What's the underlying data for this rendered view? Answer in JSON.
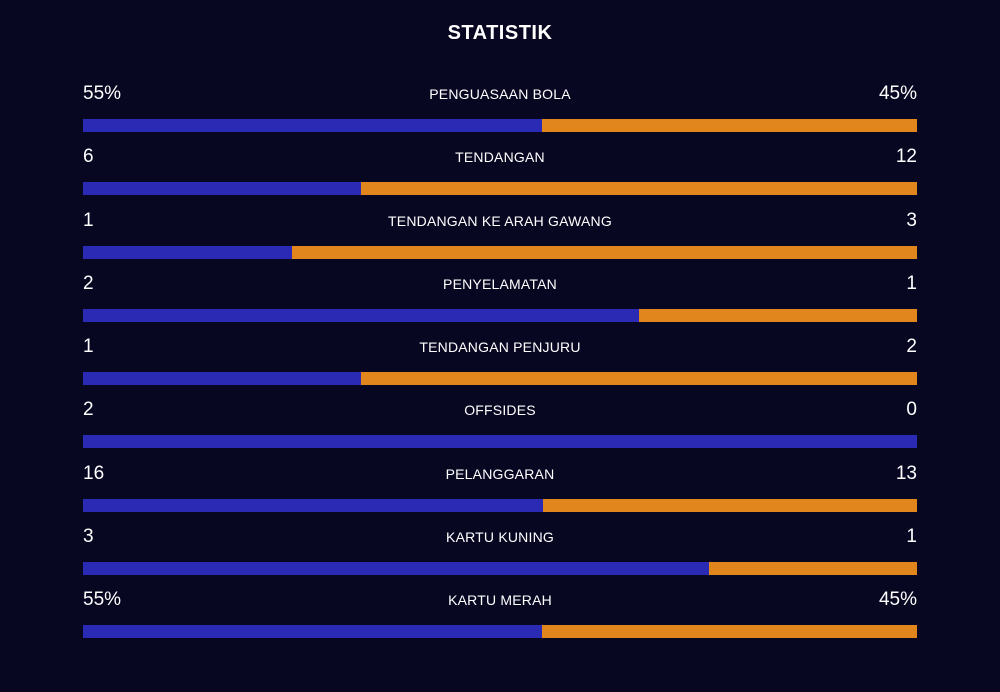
{
  "title": "STATISTIK",
  "colors": {
    "home": "#2a2ab4",
    "away": "#e0861c",
    "background": "#080722"
  },
  "stats": [
    {
      "label": "PENGUASAAN BOLA",
      "home_display": "55%",
      "away_display": "45%",
      "home_value": 55,
      "away_value": 45
    },
    {
      "label": "TENDANGAN",
      "home_display": "6",
      "away_display": "12",
      "home_value": 6,
      "away_value": 12
    },
    {
      "label": "TENDANGAN KE ARAH GAWANG",
      "home_display": "1",
      "away_display": "3",
      "home_value": 1,
      "away_value": 3
    },
    {
      "label": "PENYELAMATAN",
      "home_display": "2",
      "away_display": "1",
      "home_value": 2,
      "away_value": 1
    },
    {
      "label": "TENDANGAN PENJURU",
      "home_display": "1",
      "away_display": "2",
      "home_value": 1,
      "away_value": 2
    },
    {
      "label": "OFFSIDES",
      "home_display": "2",
      "away_display": "0",
      "home_value": 2,
      "away_value": 0
    },
    {
      "label": "PELANGGARAN",
      "home_display": "16",
      "away_display": "13",
      "home_value": 16,
      "away_value": 13
    },
    {
      "label": "KARTU KUNING",
      "home_display": "3",
      "away_display": "1",
      "home_value": 3,
      "away_value": 1
    },
    {
      "label": "KARTU MERAH",
      "home_display": "55%",
      "away_display": "45%",
      "home_value": 55,
      "away_value": 45
    }
  ]
}
